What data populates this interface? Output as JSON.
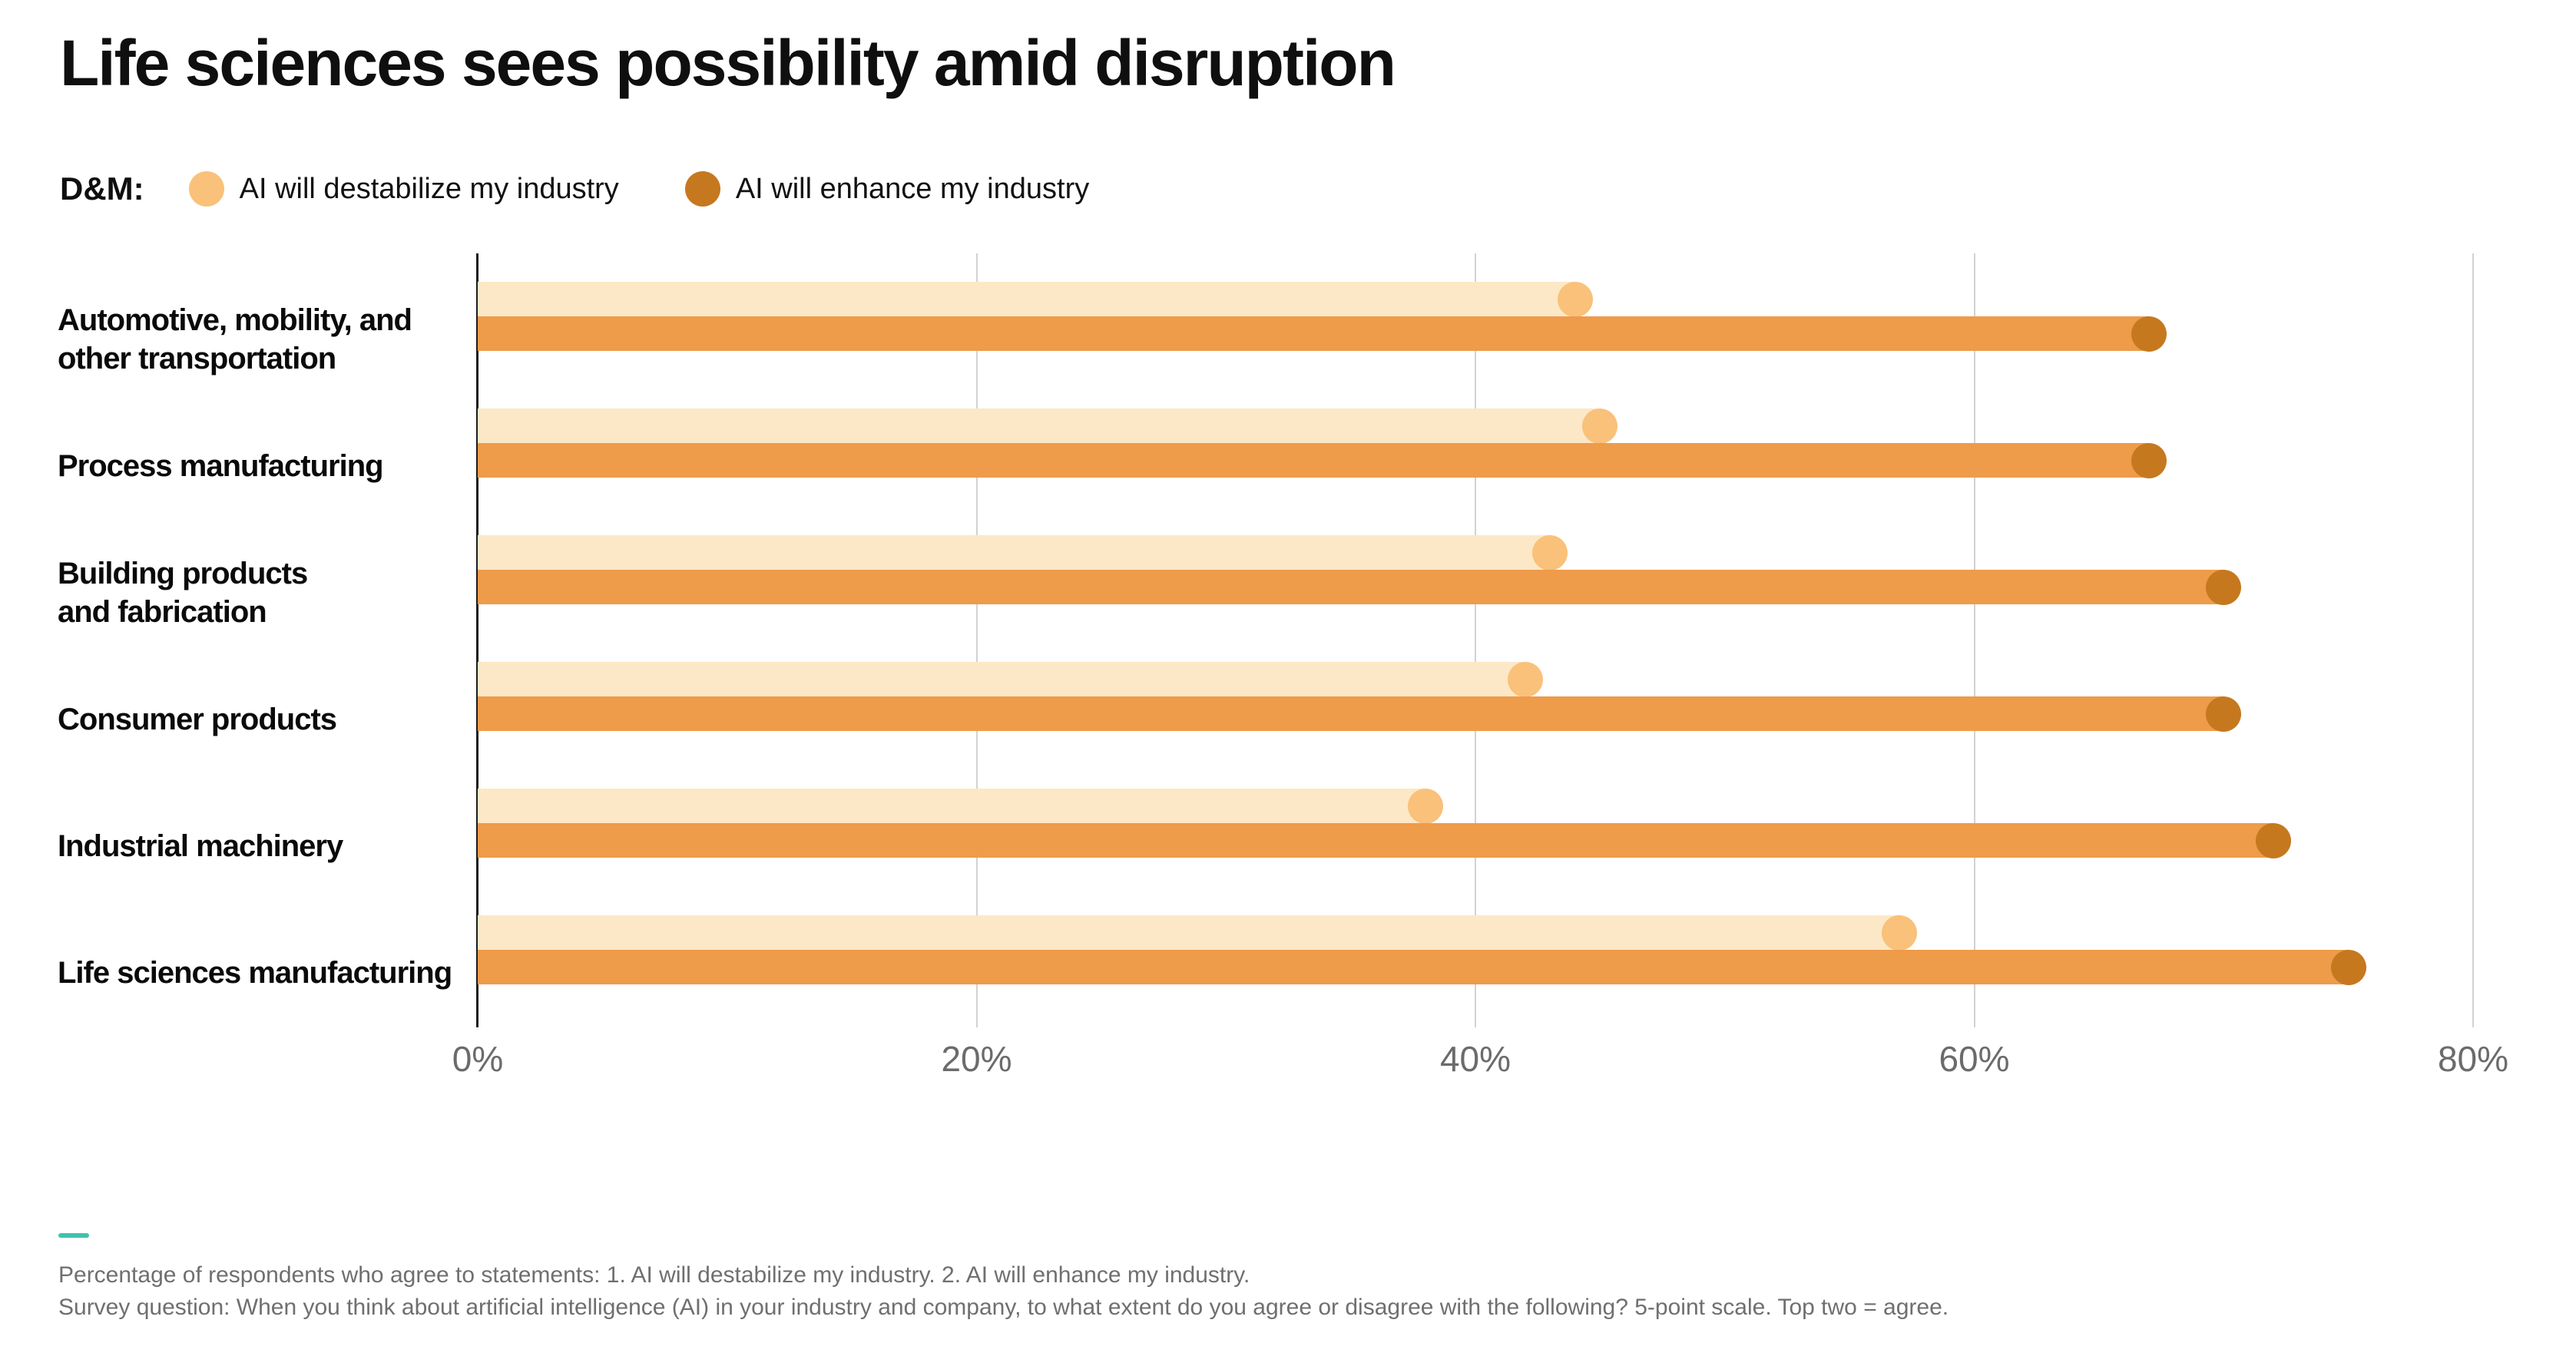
{
  "title": "Life sciences sees possibility amid disruption",
  "legend": {
    "prefix": "D&M:",
    "items": [
      {
        "label": "AI will destabilize my industry",
        "color": "#f9c17a"
      },
      {
        "label": "AI will enhance my industry",
        "color": "#c6781f"
      }
    ]
  },
  "chart_data": {
    "type": "bar",
    "orientation": "horizontal",
    "title": "Life sciences sees possibility amid disruption",
    "categories": [
      "Automotive, mobility, and\nother transportation",
      "Process manufacturing",
      "Building products\nand fabrication",
      "Consumer products",
      "Industrial machinery",
      "Life sciences manufacturing"
    ],
    "series": [
      {
        "name": "AI will destabilize my industry",
        "values": [
          44,
          45,
          43,
          42,
          38,
          57
        ],
        "unit": "%",
        "bar_color": "#fce8c6",
        "cap_color": "#f9c17a"
      },
      {
        "name": "AI will enhance my industry",
        "values": [
          67,
          67,
          70,
          70,
          72,
          75
        ],
        "unit": "%",
        "bar_color": "#ee9b4a",
        "cap_color": "#c6781f"
      }
    ],
    "xlim": [
      0,
      80
    ],
    "x_ticks": [
      "0%",
      "20%",
      "40%",
      "60%",
      "80%"
    ],
    "grid": true,
    "gridline_color": "#d2d2d2",
    "axis_line_color": "#1c1c1c",
    "legend_position": "top"
  },
  "footnotes": {
    "lines": [
      "Percentage of respondents who agree to statements: 1. AI will destabilize my industry. 2. AI will enhance my industry.",
      "Survey question: When you think about artificial intelligence (AI) in your industry and company, to what extent do you agree or disagree with the following? 5-point scale. Top two = agree."
    ]
  }
}
